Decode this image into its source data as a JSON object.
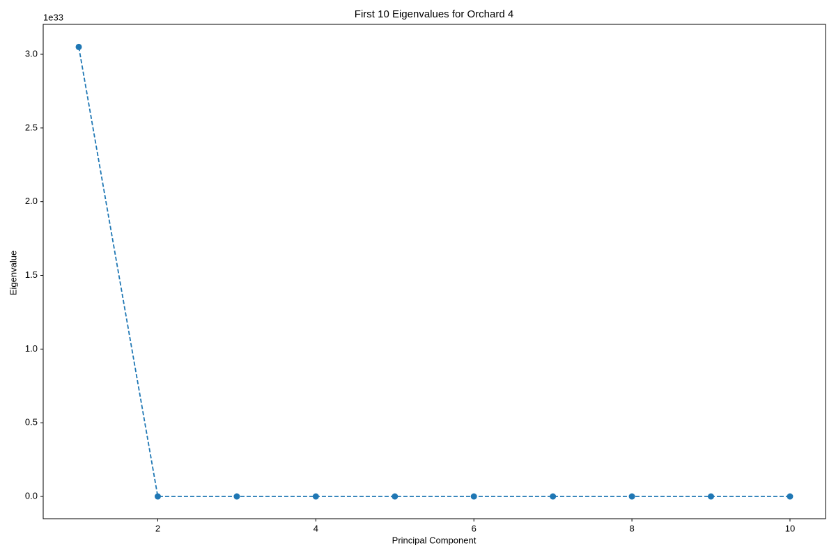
{
  "chart_data": {
    "type": "line",
    "title": "First 10 Eigenvalues for Orchard 4",
    "x_label": "Principal Component",
    "y_label": "Eigenvalue",
    "y_offset_label": "1e33",
    "x": [
      1,
      2,
      3,
      4,
      5,
      6,
      7,
      8,
      9,
      10
    ],
    "series": [
      {
        "name": "Eigenvalue",
        "color": "#1f77b4",
        "values": [
          3.05,
          0,
          0,
          0,
          0,
          0,
          0,
          0,
          0,
          0
        ]
      }
    ],
    "xlim": [
      0.55,
      10.45
    ],
    "ylim": [
      -0.151,
      3.203
    ],
    "xticks": [
      2,
      4,
      6,
      8,
      10
    ],
    "yticks": [
      {
        "value": 0,
        "label": "0.0"
      },
      0.5,
      {
        "value": 1,
        "label": "1.0"
      },
      1.5,
      {
        "value": 2,
        "label": "2.0"
      },
      2.5,
      {
        "value": 3,
        "label": "3.0"
      }
    ],
    "line_style": "dashed",
    "marker": "circle",
    "grid": false
  }
}
